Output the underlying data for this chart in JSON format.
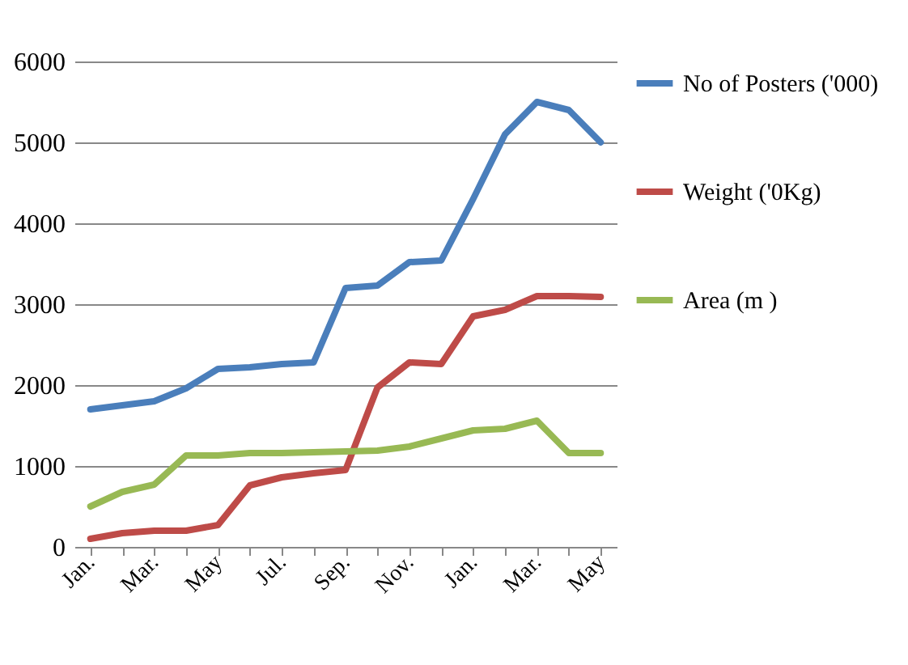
{
  "chart_data": {
    "type": "line",
    "categories": [
      "Jan.",
      null,
      "Mar.",
      null,
      "May",
      null,
      "Jul.",
      null,
      "Sep.",
      null,
      "Nov.",
      null,
      "Jan.",
      null,
      "Mar.",
      null,
      "May"
    ],
    "series": [
      {
        "name": "No of Posters ('000)",
        "color": "#4a7ebb",
        "values": [
          1700,
          1750,
          1800,
          1960,
          2200,
          2220,
          2260,
          2280,
          3200,
          3230,
          3520,
          3540,
          4300,
          5100,
          5500,
          5400,
          5000
        ]
      },
      {
        "name": "Weight ('0Kg)",
        "color": "#be4b48",
        "values": [
          100,
          170,
          200,
          200,
          270,
          760,
          860,
          910,
          950,
          1970,
          2280,
          2260,
          2850,
          2930,
          3100,
          3100,
          3090
        ]
      },
      {
        "name": "Area (m )",
        "color": "#98b954",
        "values": [
          500,
          680,
          770,
          1130,
          1130,
          1160,
          1160,
          1170,
          1180,
          1190,
          1240,
          1340,
          1440,
          1460,
          1560,
          1160,
          1160
        ]
      }
    ],
    "ylim": [
      0,
      6000
    ],
    "yticks": [
      0,
      1000,
      2000,
      3000,
      4000,
      5000,
      6000
    ],
    "grid": "y",
    "legend": "right",
    "marker": "none",
    "line_style": "solid"
  }
}
